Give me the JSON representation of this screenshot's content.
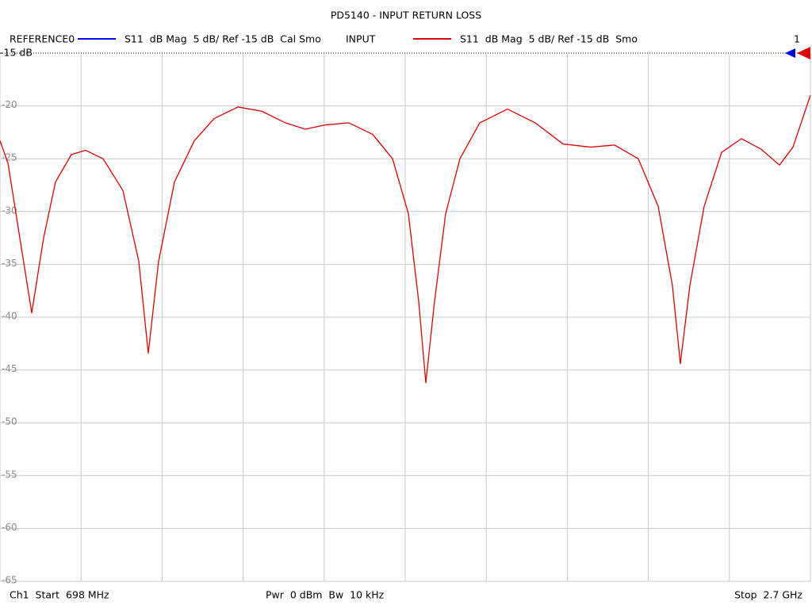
{
  "chart_data": {
    "type": "line",
    "title": "PD5140 - INPUT RETURN LOSS",
    "x": [
      698,
      717.6,
      747,
      776.4,
      805.7,
      835.1,
      874.3,
      909.6,
      952.7,
      1001.6,
      1040.8,
      1064.3,
      1089.8,
      1129,
      1177.9,
      1226.9,
      1285.7,
      1344.4,
      1403.2,
      1452.2,
      1501.1,
      1559.9,
      1618.7,
      1667.7,
      1706.8,
      1732.3,
      1749.9,
      1771.5,
      1798.9,
      1834.2,
      1883.1,
      1951.7,
      2020.3,
      2088.8,
      2157.4,
      2216.1,
      2274.9,
      2323.9,
      2359.1,
      2378.7,
      2402.2,
      2437.5,
      2480.6,
      2529.6,
      2578.5,
      2623.6,
      2656.9,
      2700
    ],
    "series": [
      {
        "name": "REFERENCE0",
        "label": "S11  dB Mag  5 dB/ Ref -15 dB  Cal Smo",
        "color": "#0000ff",
        "values": [
          null,
          null,
          null,
          null,
          null,
          null,
          null,
          null,
          null,
          null,
          null,
          null,
          null,
          null,
          null,
          null,
          null,
          null,
          null,
          null,
          null,
          null,
          null,
          null,
          null,
          null,
          null,
          null,
          null,
          null,
          null,
          null,
          null,
          null,
          null,
          null,
          null,
          null,
          null,
          null,
          null,
          null,
          null,
          null,
          null,
          null,
          null,
          null
        ]
      },
      {
        "name": "INPUT",
        "label": "S11  dB Mag  5 dB/ Ref -15 dB  Smo",
        "color": "#e00000",
        "values": [
          -23.3,
          -25.4,
          -32.5,
          -39.6,
          -32.5,
          -27.2,
          -24.6,
          -24.2,
          -25.0,
          -28.0,
          -34.7,
          -43.4,
          -34.7,
          -27.2,
          -23.3,
          -21.2,
          -20.1,
          -20.5,
          -21.6,
          -22.2,
          -21.8,
          -21.6,
          -22.7,
          -25.0,
          -30.2,
          -38.5,
          -46.2,
          -38.5,
          -30.2,
          -25.0,
          -21.6,
          -20.3,
          -21.6,
          -23.6,
          -23.9,
          -23.7,
          -25.0,
          -29.5,
          -37.0,
          -44.4,
          -37.0,
          -29.5,
          -24.4,
          -23.1,
          -24.1,
          -25.6,
          -23.9,
          -19.0
        ]
      }
    ],
    "xlim": [
      698,
      2700
    ],
    "xticks": [
      698,
      898.2,
      1098.4,
      1298.6,
      1498.8,
      1699,
      1899.2,
      2099.4,
      2299.6,
      2499.8,
      2700
    ],
    "ylim": [
      -65,
      -15
    ],
    "yticks": [
      {
        "value": -15,
        "label": "-15 dB"
      },
      -20,
      -25,
      -30,
      -35,
      -40,
      -45,
      -50,
      -55,
      -60,
      -65
    ],
    "grid": true,
    "marker_label": "1",
    "footer": {
      "start": "Ch1  Start  698 MHz",
      "power": "Pwr  0 dBm  Bw  10 kHz",
      "stop": "Stop  2.7 GHz"
    }
  }
}
